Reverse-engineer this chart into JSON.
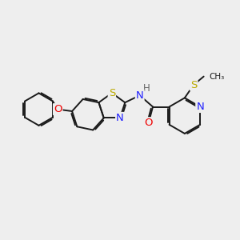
{
  "bg_color": "#eeeeee",
  "bond_color": "#1a1a1a",
  "bond_width": 1.4,
  "dbo": 0.055,
  "atom_colors": {
    "N": "#2020ff",
    "O": "#ee0000",
    "S": "#bbaa00",
    "H": "#666666"
  },
  "font_size": 8.5,
  "figsize": [
    3.0,
    3.0
  ],
  "dpi": 100
}
